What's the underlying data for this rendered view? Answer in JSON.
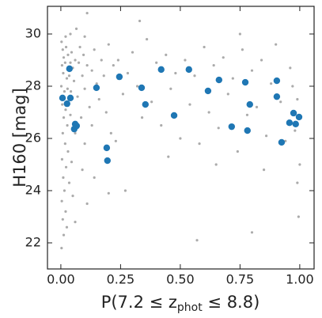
{
  "chart_data": {
    "type": "scatter",
    "xlabel": {
      "prefix": "P(7.2 ≤ z",
      "sub": "phot",
      "suffix": " ≤ 8.8)"
    },
    "ylabel": "H160 [mag]",
    "xlim": [
      -0.056,
      1.06
    ],
    "ylim": [
      21.0,
      31.06
    ],
    "xticks": [
      {
        "value": 0,
        "label": "0.00"
      },
      {
        "value": 0.25,
        "label": "0.25"
      },
      {
        "value": 0.5,
        "label": "0.50"
      },
      {
        "value": 0.75,
        "label": "0.75"
      },
      {
        "value": 1,
        "label": "1.00"
      }
    ],
    "yticks": [
      22,
      24,
      26,
      28,
      30
    ],
    "grid": false,
    "series": [
      {
        "color": "#ababab",
        "size": 1.6,
        "x": [
          0.003,
          0.008,
          0.012,
          0.005,
          0.018,
          0.022,
          0.03,
          0.01,
          0.025,
          0.04,
          0.002,
          0.015,
          0.028,
          0.035,
          0.045,
          0.05,
          0.006,
          0.02,
          0.033,
          0.042,
          0.055,
          0.06,
          0.012,
          0.027,
          0.04,
          0.008,
          0.018,
          0.03,
          0.005,
          0.022,
          0.01,
          0.015,
          0.004,
          0.02,
          0.008,
          0.012,
          0.025,
          0.035,
          0.045,
          0.06,
          0.07,
          0.075,
          0.08,
          0.065,
          0.09,
          0.1,
          0.095,
          0.11,
          0.085,
          0.1,
          0.12,
          0.13,
          0.14,
          0.15,
          0.16,
          0.17,
          0.13,
          0.09,
          0.11,
          0.18,
          0.2,
          0.19,
          0.21,
          0.22,
          0.24,
          0.26,
          0.28,
          0.23,
          0.3,
          0.32,
          0.34,
          0.36,
          0.38,
          0.4,
          0.42,
          0.44,
          0.46,
          0.48,
          0.5,
          0.52,
          0.54,
          0.56,
          0.58,
          0.6,
          0.62,
          0.64,
          0.66,
          0.68,
          0.7,
          0.72,
          0.74,
          0.76,
          0.78,
          0.8,
          0.82,
          0.84,
          0.86,
          0.88,
          0.9,
          0.92,
          0.94,
          0.96,
          0.98,
          0.99,
          1.0,
          0.995,
          0.8,
          0.57,
          0.11,
          0.33,
          0.75,
          0.14,
          0.27,
          0.05,
          0.06,
          0.003,
          0.2,
          0.45,
          0.65,
          0.85,
          0.97,
          0.99,
          0.1,
          0.02,
          0.04
        ],
        "y": [
          29.7,
          29.4,
          29.1,
          28.8,
          28.9,
          29.5,
          29.2,
          28.5,
          28.3,
          28.9,
          28.0,
          27.8,
          27.9,
          28.4,
          29.3,
          28.7,
          27.3,
          27.1,
          27.5,
          27.8,
          28.2,
          29.0,
          26.8,
          26.5,
          26.9,
          26.2,
          25.8,
          25.5,
          25.2,
          24.9,
          24.5,
          24.0,
          23.6,
          23.2,
          22.9,
          22.3,
          22.6,
          24.3,
          25.1,
          26.2,
          27.6,
          28.9,
          29.5,
          30.2,
          28.4,
          27.9,
          29.2,
          28.8,
          26.8,
          25.8,
          27.2,
          28.6,
          29.4,
          28.1,
          27.5,
          29.0,
          26.5,
          24.8,
          23.5,
          28.4,
          29.6,
          27.0,
          26.2,
          28.8,
          29.0,
          27.7,
          28.5,
          25.9,
          29.3,
          28.0,
          26.8,
          29.8,
          27.4,
          28.9,
          26.5,
          29.2,
          27.9,
          28.5,
          26.0,
          29.0,
          27.3,
          28.4,
          25.8,
          29.5,
          27.0,
          28.8,
          26.4,
          29.1,
          27.7,
          28.3,
          25.5,
          29.4,
          26.9,
          28.6,
          27.2,
          29.0,
          26.1,
          28.1,
          29.6,
          27.4,
          25.9,
          28.7,
          26.3,
          24.3,
          25.0,
          23.0,
          22.4,
          22.1,
          30.8,
          30.5,
          30.0,
          24.5,
          24.0,
          23.8,
          22.8,
          21.8,
          23.9,
          25.3,
          25.0,
          24.8,
          28.0,
          27.5,
          29.9,
          29.9,
          30.0
        ]
      },
      {
        "color": "#1f77b4",
        "size": 4.2,
        "x": [
          0.007,
          0.036,
          0.026,
          0.04,
          0.056,
          0.066,
          0.06,
          0.149,
          0.245,
          0.192,
          0.195,
          0.338,
          0.354,
          0.42,
          0.474,
          0.536,
          0.616,
          0.662,
          0.715,
          0.772,
          0.781,
          0.791,
          0.904,
          0.904,
          0.924,
          0.974,
          0.957,
          0.983,
          0.997
        ],
        "y": [
          27.55,
          28.67,
          27.33,
          27.55,
          26.36,
          26.48,
          26.55,
          27.94,
          28.36,
          25.64,
          25.15,
          27.94,
          27.3,
          28.64,
          26.88,
          28.64,
          27.82,
          28.24,
          26.45,
          28.15,
          26.3,
          27.3,
          28.21,
          27.6,
          25.85,
          26.97,
          26.6,
          26.55,
          26.82
        ]
      }
    ]
  }
}
